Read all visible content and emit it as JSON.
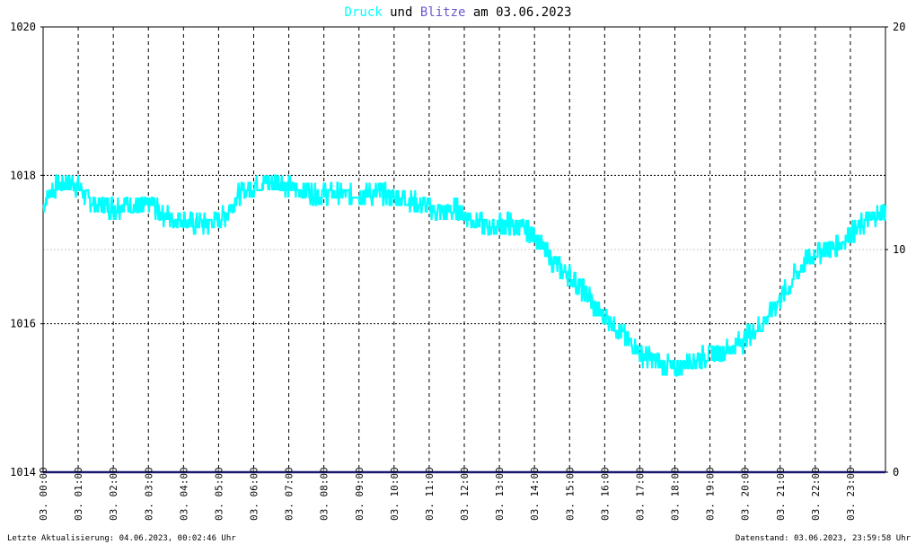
{
  "title": {
    "word1": "Druck",
    "word2": " und ",
    "word3": "Blitze",
    "word4": " am 03.06.2023",
    "color1": "#00ffff",
    "color3": "#6a5acd",
    "color_text": "#000000"
  },
  "footer": {
    "left": "Letzte Aktualisierung: 04.06.2023, 00:02:46 Uhr",
    "right": "Datenstand: 03.06.2023, 23:59:58 Uhr"
  },
  "chart_data": {
    "type": "line",
    "grid": true,
    "x_ticks": [
      "03. 00:00",
      "03. 01:00",
      "03. 02:00",
      "03. 03:00",
      "03. 04:00",
      "03. 05:00",
      "03. 06:00",
      "03. 07:00",
      "03. 08:00",
      "03. 09:00",
      "03. 10:00",
      "03. 11:00",
      "03. 12:00",
      "03. 13:00",
      "03. 14:00",
      "03. 15:00",
      "03. 16:00",
      "03. 17:00",
      "03. 18:00",
      "03. 19:00",
      "03. 20:00",
      "03. 21:00",
      "03. 22:00",
      "03. 23:00"
    ],
    "y_left": {
      "ylim": [
        1014,
        1020
      ],
      "ticks": [
        1014,
        1016,
        1018,
        1020
      ]
    },
    "y_right": {
      "ylim": [
        0,
        20
      ],
      "ticks": [
        0,
        10,
        20
      ]
    },
    "series": [
      {
        "name": "Druck",
        "axis": "left",
        "color": "#00ffff",
        "x_hours": [
          0,
          0.25,
          0.5,
          0.75,
          1,
          1.25,
          1.5,
          1.75,
          2,
          2.25,
          2.5,
          2.75,
          3,
          3.25,
          3.5,
          3.75,
          4,
          4.25,
          4.5,
          4.75,
          5,
          5.25,
          5.5,
          5.75,
          6,
          6.25,
          6.5,
          6.75,
          7,
          7.25,
          7.5,
          7.75,
          8,
          8.25,
          8.5,
          8.75,
          9,
          9.25,
          9.5,
          9.75,
          10,
          10.25,
          10.5,
          10.75,
          11,
          11.25,
          11.5,
          11.75,
          12,
          12.25,
          12.5,
          12.75,
          13,
          13.25,
          13.5,
          13.75,
          14,
          14.25,
          14.5,
          14.75,
          15,
          15.25,
          15.5,
          15.75,
          16,
          16.25,
          16.5,
          16.75,
          17,
          17.25,
          17.5,
          17.75,
          18,
          18.25,
          18.5,
          18.75,
          19,
          19.25,
          19.5,
          19.75,
          20,
          20.25,
          20.5,
          20.75,
          21,
          21.25,
          21.5,
          21.75,
          22,
          22.25,
          22.5,
          22.75,
          23,
          23.25,
          23.5,
          23.75,
          24
        ],
        "values": [
          1017.6,
          1017.8,
          1017.9,
          1017.9,
          1017.85,
          1017.7,
          1017.6,
          1017.6,
          1017.55,
          1017.6,
          1017.6,
          1017.55,
          1017.6,
          1017.55,
          1017.45,
          1017.4,
          1017.4,
          1017.35,
          1017.35,
          1017.35,
          1017.4,
          1017.5,
          1017.7,
          1017.8,
          1017.85,
          1017.9,
          1017.9,
          1017.9,
          1017.85,
          1017.8,
          1017.8,
          1017.75,
          1017.75,
          1017.75,
          1017.75,
          1017.75,
          1017.75,
          1017.75,
          1017.75,
          1017.75,
          1017.7,
          1017.7,
          1017.65,
          1017.6,
          1017.55,
          1017.5,
          1017.5,
          1017.55,
          1017.45,
          1017.4,
          1017.35,
          1017.3,
          1017.35,
          1017.35,
          1017.3,
          1017.25,
          1017.2,
          1017.0,
          1016.85,
          1016.75,
          1016.65,
          1016.5,
          1016.4,
          1016.2,
          1016.1,
          1016.0,
          1015.85,
          1015.75,
          1015.6,
          1015.55,
          1015.5,
          1015.45,
          1015.4,
          1015.45,
          1015.5,
          1015.55,
          1015.6,
          1015.6,
          1015.65,
          1015.7,
          1015.8,
          1015.9,
          1016.0,
          1016.15,
          1016.35,
          1016.5,
          1016.7,
          1016.85,
          1016.95,
          1017.0,
          1017.05,
          1017.1,
          1017.2,
          1017.3,
          1017.4,
          1017.45,
          1017.5
        ]
      },
      {
        "name": "Blitze",
        "axis": "right",
        "color": "#191970",
        "x_hours": [
          0,
          24
        ],
        "values": [
          0,
          0
        ]
      }
    ]
  }
}
